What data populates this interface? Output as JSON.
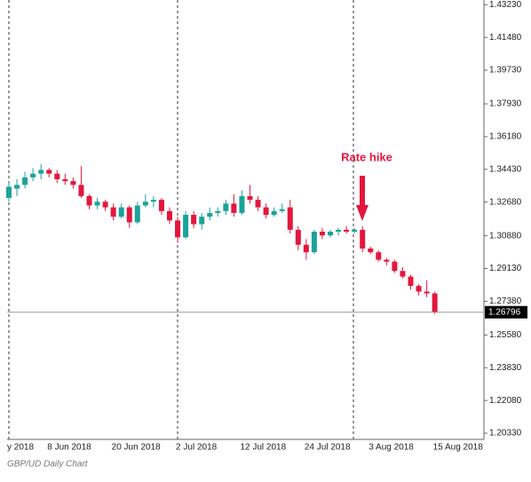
{
  "chart_data": {
    "type": "candlestick",
    "caption": "GBP/UD Daily Chart",
    "annotation": "Rate hike",
    "last_price": 1.26796,
    "up_color": "#1ba39a",
    "down_color": "#e3173e",
    "categories": [
      "y 2018",
      null,
      null,
      null,
      null,
      "8 Jun 2018",
      null,
      null,
      null,
      null,
      null,
      null,
      null,
      "20 Jun 2018",
      null,
      null,
      null,
      null,
      null,
      null,
      null,
      "2 Jul 2018",
      null,
      null,
      null,
      null,
      null,
      null,
      null,
      "12 Jul 2018",
      null,
      null,
      null,
      null,
      null,
      null,
      null,
      "24 Jul 2018",
      null,
      null,
      null,
      null,
      null,
      null,
      null,
      "3 Aug 2018",
      null,
      null,
      null,
      null,
      null,
      null,
      null,
      "15 Aug 2018"
    ],
    "open": [
      1.329,
      1.334,
      1.336,
      1.34,
      1.342,
      1.344,
      1.342,
      1.339,
      1.338,
      1.336,
      1.33,
      1.325,
      1.327,
      1.324,
      1.319,
      1.324,
      1.316,
      1.325,
      1.327,
      1.328,
      1.322,
      1.317,
      1.308,
      1.32,
      1.315,
      1.319,
      1.321,
      1.322,
      1.326,
      1.321,
      1.33,
      1.328,
      1.324,
      1.32,
      1.322,
      1.324,
      1.312,
      1.304,
      1.3,
      1.311,
      1.309,
      1.311,
      1.312,
      1.311,
      1.312,
      1.302,
      1.3,
      1.296,
      1.295,
      1.29,
      1.287,
      1.282,
      1.279,
      1.278
    ],
    "high": [
      1.337,
      1.339,
      1.343,
      1.345,
      1.347,
      1.345,
      1.344,
      1.342,
      1.34,
      1.346,
      1.331,
      1.329,
      1.328,
      1.326,
      1.326,
      1.325,
      1.327,
      1.331,
      1.33,
      1.329,
      1.324,
      1.319,
      1.322,
      1.322,
      1.321,
      1.324,
      1.324,
      1.328,
      1.331,
      1.333,
      1.336,
      1.33,
      1.326,
      1.324,
      1.326,
      1.328,
      1.314,
      1.307,
      1.312,
      1.313,
      1.312,
      1.313,
      1.314,
      1.313,
      1.314,
      1.303,
      1.301,
      1.297,
      1.296,
      1.292,
      1.288,
      1.283,
      1.285,
      1.279
    ],
    "low": [
      1.327,
      1.33,
      1.334,
      1.338,
      1.339,
      1.34,
      1.337,
      1.336,
      1.334,
      1.329,
      1.323,
      1.323,
      1.322,
      1.317,
      1.318,
      1.313,
      1.315,
      1.324,
      1.324,
      1.32,
      1.315,
      1.305,
      1.307,
      1.313,
      1.312,
      1.317,
      1.319,
      1.32,
      1.319,
      1.32,
      1.326,
      1.322,
      1.318,
      1.319,
      1.321,
      1.31,
      1.301,
      1.296,
      1.299,
      1.307,
      1.308,
      1.309,
      1.31,
      1.31,
      1.3,
      1.299,
      1.295,
      1.293,
      1.289,
      1.286,
      1.28,
      1.277,
      1.276,
      1.267
    ],
    "close": [
      1.335,
      1.336,
      1.34,
      1.342,
      1.344,
      1.342,
      1.339,
      1.338,
      1.336,
      1.33,
      1.325,
      1.327,
      1.324,
      1.319,
      1.324,
      1.316,
      1.325,
      1.327,
      1.328,
      1.322,
      1.317,
      1.308,
      1.32,
      1.315,
      1.319,
      1.321,
      1.322,
      1.326,
      1.321,
      1.33,
      1.328,
      1.324,
      1.32,
      1.322,
      1.323,
      1.312,
      1.304,
      1.3,
      1.311,
      1.309,
      1.311,
      1.312,
      1.311,
      1.312,
      1.302,
      1.3,
      1.296,
      1.295,
      1.29,
      1.287,
      1.282,
      1.279,
      1.278,
      1.26796
    ],
    "ylim": [
      1.2,
      1.4348
    ],
    "yticks": [
      {
        "value": 1.4323,
        "label": "1.43230"
      },
      {
        "value": 1.4148,
        "label": "1.41480"
      },
      {
        "value": 1.3973,
        "label": "1.39730"
      },
      {
        "value": 1.3793,
        "label": "1.37930"
      },
      {
        "value": 1.3618,
        "label": "1.36180"
      },
      {
        "value": 1.3443,
        "label": "1.34430"
      },
      {
        "value": 1.3268,
        "label": "1.32680"
      },
      {
        "value": 1.3088,
        "label": "1.30880"
      },
      {
        "value": 1.2913,
        "label": "1.29130"
      },
      {
        "value": 1.2738,
        "label": "1.27380"
      },
      {
        "value": 1.2558,
        "label": "1.25580"
      },
      {
        "value": 1.2383,
        "label": "1.23830"
      },
      {
        "value": 1.2208,
        "label": "1.22080"
      },
      {
        "value": 1.2033,
        "label": "1.20330"
      }
    ]
  }
}
